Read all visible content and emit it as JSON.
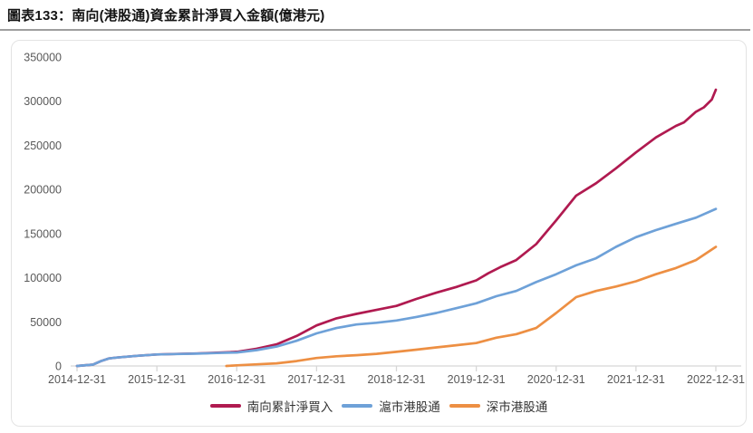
{
  "title": "圖表133：南向(港股通)資金累計淨買入金額(億港元)",
  "colors": {
    "south_line": "#B01A50",
    "shanghai_line": "#6EA1D8",
    "shenzhen_line": "#ED8F43",
    "axis_text": "#595959",
    "axis_line": "#d6d6d6",
    "panel_border": "#e3e3e3",
    "separator": "#9e9e9e",
    "title_text": "#141414",
    "legend_text": "#333333"
  },
  "chart_data": {
    "type": "line",
    "title": "圖表133：南向(港股通)資金累計淨買入金額(億港元)",
    "xlabel": "",
    "ylabel": "",
    "ylim": [
      0,
      350000
    ],
    "y_ticks": [
      0,
      50000,
      100000,
      150000,
      200000,
      250000,
      300000,
      350000
    ],
    "x_tick_labels": [
      "2014-12-31",
      "2015-12-31",
      "2016-12-31",
      "2017-12-31",
      "2018-12-31",
      "2019-12-31",
      "2020-12-31",
      "2021-12-31",
      "2022-12-31"
    ],
    "x_unit": "years_since_2014-12-31",
    "xlim_years": [
      0,
      8
    ],
    "grid": false,
    "legend_position": "bottom",
    "series": [
      {
        "name": "南向累計淨買入",
        "color": "#B01A50",
        "points": [
          [
            0,
            0
          ],
          [
            0.2,
            1500
          ],
          [
            0.3,
            5500
          ],
          [
            0.4,
            8500
          ],
          [
            0.5,
            9500
          ],
          [
            0.75,
            11500
          ],
          [
            1,
            13000
          ],
          [
            1.25,
            13600
          ],
          [
            1.5,
            14200
          ],
          [
            1.75,
            15000
          ],
          [
            2,
            16000
          ],
          [
            2.25,
            19500
          ],
          [
            2.5,
            24500
          ],
          [
            2.75,
            34000
          ],
          [
            3,
            46000
          ],
          [
            3.25,
            54000
          ],
          [
            3.5,
            59000
          ],
          [
            3.75,
            63500
          ],
          [
            4,
            68000
          ],
          [
            4.25,
            76000
          ],
          [
            4.5,
            83000
          ],
          [
            4.75,
            89500
          ],
          [
            5,
            97000
          ],
          [
            5.15,
            105000
          ],
          [
            5.3,
            112000
          ],
          [
            5.5,
            120000
          ],
          [
            5.75,
            138000
          ],
          [
            6,
            165000
          ],
          [
            6.25,
            193000
          ],
          [
            6.5,
            207000
          ],
          [
            6.75,
            224000
          ],
          [
            7,
            242000
          ],
          [
            7.25,
            259000
          ],
          [
            7.5,
            272000
          ],
          [
            7.6,
            276000
          ],
          [
            7.75,
            288000
          ],
          [
            7.85,
            293000
          ],
          [
            7.95,
            302000
          ],
          [
            8,
            313000
          ]
        ]
      },
      {
        "name": "滬市港股通",
        "color": "#6EA1D8",
        "points": [
          [
            0,
            0
          ],
          [
            0.2,
            1500
          ],
          [
            0.3,
            5500
          ],
          [
            0.4,
            8500
          ],
          [
            0.5,
            9500
          ],
          [
            0.75,
            11500
          ],
          [
            1,
            13000
          ],
          [
            1.25,
            13500
          ],
          [
            1.5,
            14000
          ],
          [
            1.75,
            14700
          ],
          [
            2,
            15300
          ],
          [
            2.25,
            18000
          ],
          [
            2.5,
            22000
          ],
          [
            2.75,
            28500
          ],
          [
            3,
            37000
          ],
          [
            3.25,
            43000
          ],
          [
            3.5,
            47000
          ],
          [
            3.75,
            49000
          ],
          [
            4,
            51500
          ],
          [
            4.25,
            55500
          ],
          [
            4.5,
            60000
          ],
          [
            4.75,
            65500
          ],
          [
            5,
            71000
          ],
          [
            5.25,
            79000
          ],
          [
            5.5,
            85000
          ],
          [
            5.75,
            95000
          ],
          [
            6,
            104000
          ],
          [
            6.25,
            114000
          ],
          [
            6.5,
            122000
          ],
          [
            6.75,
            135000
          ],
          [
            7,
            146000
          ],
          [
            7.25,
            154000
          ],
          [
            7.5,
            161000
          ],
          [
            7.75,
            168000
          ],
          [
            8,
            178000
          ]
        ]
      },
      {
        "name": "深市港股通",
        "color": "#ED8F43",
        "points": [
          [
            1.87,
            0
          ],
          [
            2,
            700
          ],
          [
            2.25,
            1800
          ],
          [
            2.5,
            3000
          ],
          [
            2.75,
            5500
          ],
          [
            3,
            9000
          ],
          [
            3.25,
            11000
          ],
          [
            3.5,
            12200
          ],
          [
            3.75,
            13800
          ],
          [
            4,
            16000
          ],
          [
            4.25,
            18500
          ],
          [
            4.5,
            21000
          ],
          [
            4.75,
            23500
          ],
          [
            5,
            26000
          ],
          [
            5.25,
            32000
          ],
          [
            5.5,
            36000
          ],
          [
            5.75,
            43000
          ],
          [
            6,
            60000
          ],
          [
            6.25,
            78000
          ],
          [
            6.5,
            85000
          ],
          [
            6.75,
            90000
          ],
          [
            7,
            96000
          ],
          [
            7.25,
            104000
          ],
          [
            7.5,
            111000
          ],
          [
            7.75,
            120000
          ],
          [
            8,
            135000
          ]
        ]
      }
    ]
  }
}
